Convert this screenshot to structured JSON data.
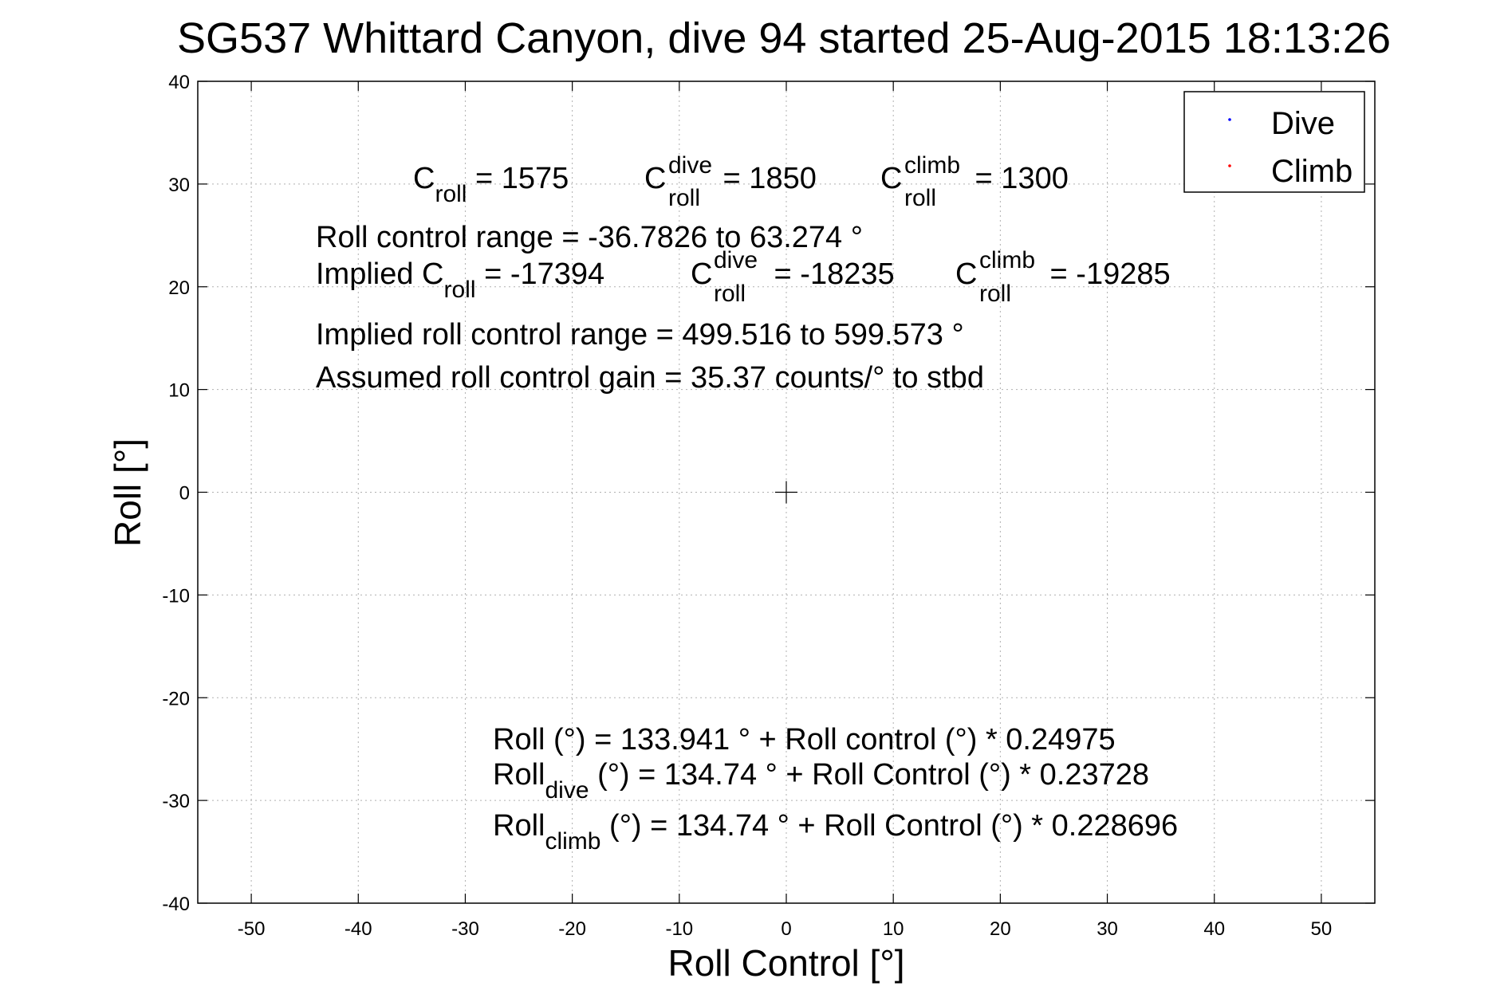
{
  "chart_data": {
    "type": "scatter",
    "title": "SG537 Whittard Canyon, dive 94 started 25-Aug-2015 18:13:26",
    "xlabel": "Roll Control [°]",
    "ylabel": "Roll [°]",
    "xlim": [
      -55,
      55
    ],
    "ylim": [
      -40,
      40
    ],
    "xticks": [
      -50,
      -40,
      -30,
      -20,
      -10,
      0,
      10,
      20,
      30,
      40,
      50
    ],
    "yticks": [
      -40,
      -30,
      -20,
      -10,
      0,
      10,
      20,
      30,
      40
    ],
    "grid": true,
    "legend_position": "top-right",
    "series": [
      {
        "name": "Dive",
        "color": "#0000ff",
        "points": []
      },
      {
        "name": "Climb",
        "color": "#ff0000",
        "points": []
      }
    ],
    "center_marker": {
      "x": 0,
      "y": 0,
      "symbol": "+"
    },
    "annotations": {
      "c_line": {
        "c1": "C",
        "s1": "roll",
        "v1": " = 1575",
        "c2": "C",
        "sup2": "dive",
        "s2": "roll",
        "v2": " = 1850",
        "c3": "C",
        "sup3": "climb",
        "s3": "roll",
        "v3": " = 1300"
      },
      "range_line": "Roll control range = -36.7826 to 63.274 °",
      "implied_line": {
        "t1": "Implied C",
        "s1": "roll",
        "v1": " = -17394",
        "c2": "C",
        "sup2": "dive",
        "s2": "roll",
        "v2": " = -18235",
        "c3": "C",
        "sup3": "climb",
        "s3": "roll",
        "v3": " = -19285"
      },
      "implied_range": "Implied roll control range = 499.516 to 599.573 °",
      "gain": "Assumed roll control gain = 35.37 counts/° to stbd",
      "fit_all": "Roll (°) = 133.941 ° + Roll control (°) * 0.24975",
      "fit_dive": {
        "a": "Roll",
        "s": "dive",
        "b": " (°) = 134.74 ° + Roll Control (°) * 0.23728"
      },
      "fit_climb": {
        "a": "Roll",
        "s": "climb",
        "b": " (°) = 134.74 ° + Roll Control (°) * 0.228696"
      }
    }
  }
}
